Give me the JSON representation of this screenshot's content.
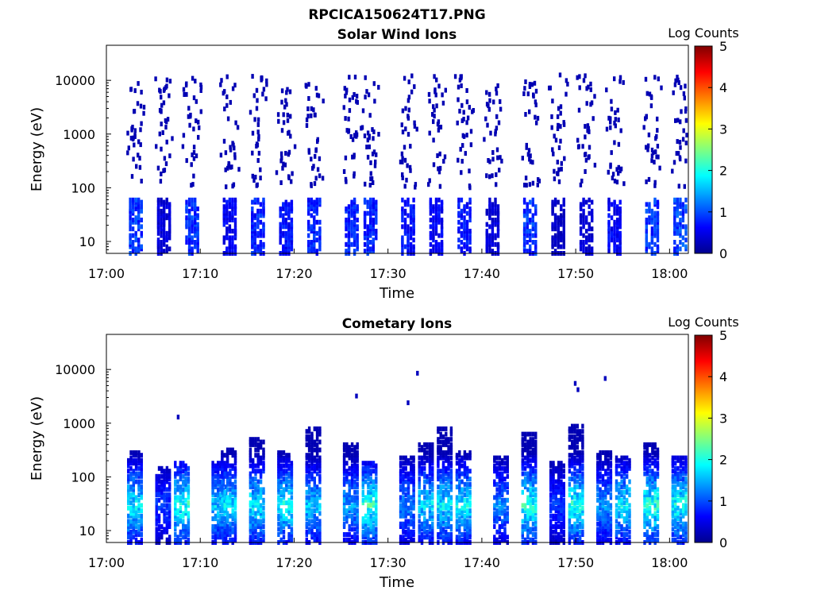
{
  "figure": {
    "title": "RPCICA150624T17.PNG"
  },
  "chart_data": [
    {
      "type": "heatmap",
      "title": "Solar Wind Ions",
      "xlabel": "Time",
      "ylabel": "Energy (eV)",
      "yscale": "log",
      "xlim": [
        "17:00",
        "18:02"
      ],
      "ylim": [
        6,
        45000
      ],
      "xticks": [
        "17:00",
        "17:10",
        "17:20",
        "17:30",
        "17:40",
        "17:50",
        "18:00"
      ],
      "yticks": [
        "10",
        "100",
        "1000",
        "10000"
      ],
      "colorbar": {
        "label": "Log Counts",
        "ticks": [
          "0",
          "1",
          "2",
          "3",
          "4",
          "5"
        ],
        "range": [
          0,
          5
        ],
        "colormap": "jet"
      },
      "grid": false,
      "sweeps": [
        {
          "t": "17:03",
          "count_low": 1.0,
          "count_high": 0.2
        },
        {
          "t": "17:06",
          "count_low": 0.5,
          "count_high": 0.2
        },
        {
          "t": "17:09",
          "count_low": 1.0,
          "count_high": 0.2
        },
        {
          "t": "17:13",
          "count_low": 0.7,
          "count_high": 0.2
        },
        {
          "t": "17:16",
          "count_low": 0.9,
          "count_high": 0.2
        },
        {
          "t": "17:19",
          "count_low": 0.8,
          "count_high": 0.2
        },
        {
          "t": "17:22",
          "count_low": 0.9,
          "count_high": 0.2
        },
        {
          "t": "17:26",
          "count_low": 0.9,
          "count_high": 0.2
        },
        {
          "t": "17:28",
          "count_low": 0.9,
          "count_high": 0.2
        },
        {
          "t": "17:32",
          "count_low": 0.8,
          "count_high": 0.2
        },
        {
          "t": "17:35",
          "count_low": 0.7,
          "count_high": 0.2
        },
        {
          "t": "17:38",
          "count_low": 0.8,
          "count_high": 0.2
        },
        {
          "t": "17:41",
          "count_low": 0.5,
          "count_high": 0.2
        },
        {
          "t": "17:45",
          "count_low": 1.0,
          "count_high": 0.2
        },
        {
          "t": "17:48",
          "count_low": 0.4,
          "count_high": 0.2
        },
        {
          "t": "17:51",
          "count_low": 0.5,
          "count_high": 0.2
        },
        {
          "t": "17:54",
          "count_low": 0.7,
          "count_high": 0.2
        },
        {
          "t": "17:58",
          "count_low": 1.0,
          "count_high": 0.2
        },
        {
          "t": "18:01",
          "count_low": 1.1,
          "count_high": 0.2
        }
      ]
    },
    {
      "type": "heatmap",
      "title": "Cometary Ions",
      "xlabel": "Time",
      "ylabel": "Energy (eV)",
      "yscale": "log",
      "xlim": [
        "17:00",
        "18:02"
      ],
      "ylim": [
        6,
        45000
      ],
      "xticks": [
        "17:00",
        "17:10",
        "17:20",
        "17:30",
        "17:40",
        "17:50",
        "18:00"
      ],
      "yticks": [
        "10",
        "100",
        "1000",
        "10000"
      ],
      "colorbar": {
        "label": "Log Counts",
        "ticks": [
          "0",
          "1",
          "2",
          "3",
          "4",
          "5"
        ],
        "range": [
          0,
          5
        ],
        "colormap": "jet"
      },
      "grid": false,
      "sweeps": [
        {
          "t": "17:03",
          "peak": 2.0,
          "top": 300
        },
        {
          "t": "17:06",
          "peak": 1.0,
          "top": 150
        },
        {
          "t": "17:08",
          "peak": 2.2,
          "top": 200
        },
        {
          "t": "17:12",
          "peak": 1.8,
          "top": 200
        },
        {
          "t": "17:13",
          "peak": 1.9,
          "top": 350
        },
        {
          "t": "17:16",
          "peak": 2.0,
          "top": 500
        },
        {
          "t": "17:19",
          "peak": 2.1,
          "top": 300
        },
        {
          "t": "17:22",
          "peak": 1.8,
          "top": 800
        },
        {
          "t": "17:26",
          "peak": 1.6,
          "top": 400
        },
        {
          "t": "17:28",
          "peak": 2.3,
          "top": 200
        },
        {
          "t": "17:32",
          "peak": 1.4,
          "top": 250
        },
        {
          "t": "17:34",
          "peak": 1.9,
          "top": 400
        },
        {
          "t": "17:36",
          "peak": 2.0,
          "top": 800
        },
        {
          "t": "17:38",
          "peak": 2.0,
          "top": 300
        },
        {
          "t": "17:42",
          "peak": 1.4,
          "top": 250
        },
        {
          "t": "17:45",
          "peak": 2.2,
          "top": 700
        },
        {
          "t": "17:48",
          "peak": 1.0,
          "top": 200
        },
        {
          "t": "17:50",
          "peak": 2.2,
          "top": 900
        },
        {
          "t": "17:53",
          "peak": 1.5,
          "top": 300
        },
        {
          "t": "17:55",
          "peak": 2.0,
          "top": 250
        },
        {
          "t": "17:58",
          "peak": 2.3,
          "top": 400
        },
        {
          "t": "18:01",
          "peak": 2.2,
          "top": 250
        }
      ],
      "isolated": [
        {
          "t": "17:07.5",
          "e": 1300,
          "v": 0.3
        },
        {
          "t": "17:26.5",
          "e": 3200,
          "v": 0.3
        },
        {
          "t": "17:32",
          "e": 2400,
          "v": 0.3
        },
        {
          "t": "17:33",
          "e": 8500,
          "v": 0.3
        },
        {
          "t": "17:49.8",
          "e": 5500,
          "v": 0.3
        },
        {
          "t": "17:50.1",
          "e": 4200,
          "v": 0.3
        },
        {
          "t": "17:53",
          "e": 6800,
          "v": 0.3
        }
      ]
    }
  ]
}
